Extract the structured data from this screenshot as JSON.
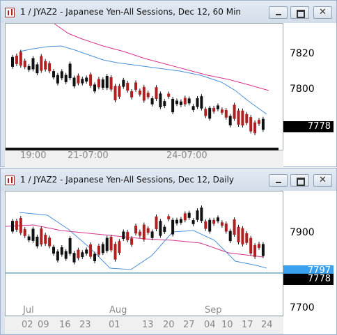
{
  "window1": {
    "title": "1 / JYAZ2 - Japanese Yen-All Sessions, Dec 12, 60 Min",
    "y_labels": [
      "7820",
      "7800"
    ],
    "last_price": "7778",
    "x_labels": [
      "19:00",
      "21-07:00",
      "24-07:00"
    ]
  },
  "window2": {
    "title": "1 / JYAZ2 - Japanese Yen-All Sessions, Dec 12, Daily",
    "y_labels": [
      "7900",
      "7700"
    ],
    "blue_price": "7797",
    "last_price": "7778",
    "month_labels": [
      "Jul",
      "Aug",
      "Sep"
    ],
    "day_labels": [
      "02",
      "09",
      "16",
      "23",
      "01",
      "13",
      "20",
      "27",
      "04",
      "10",
      "17",
      "24"
    ]
  },
  "colors": {
    "up": "#b02020",
    "down": "#111111",
    "ma_fast": "#4a90d9",
    "ma_slow": "#d4338c",
    "hline": "#2a7f9f"
  },
  "icons": {
    "app": "chart-icon",
    "minimize": "minimize-icon",
    "maximize": "maximize-icon",
    "close": "close-icon"
  }
}
